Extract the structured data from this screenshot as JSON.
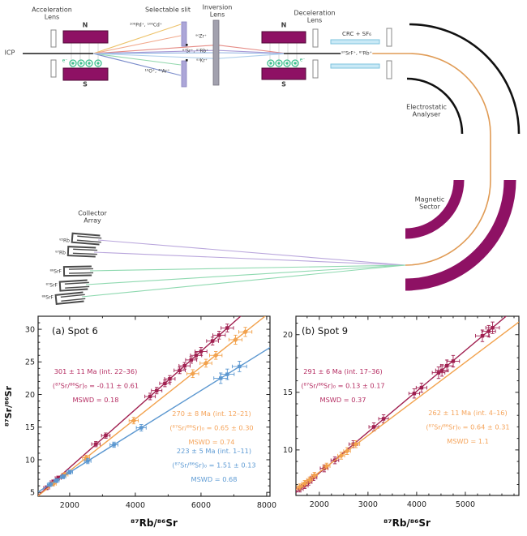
{
  "figure": {
    "background": "#ffffff"
  },
  "diagram": {
    "labels": {
      "icp": "ICP",
      "acceleration_lens": "Acceleration\nLens",
      "selectable_slit": "Selectable slit",
      "inversion_lens": "Inversion\nLens",
      "deceleration_lens": "Deceleration\nLens",
      "crc": "CRC + SF₆",
      "electrostatic_analyser": "Electrostatic\nAnalyser",
      "magnetic_sector": "Magnetic\nSector",
      "collector_array": "Collector\nArray",
      "magnet1_n": "N",
      "magnet1_s": "S",
      "magnet2_n": "N",
      "magnet2_s": "S",
      "electron1": "e⁻",
      "electron2": "e⁻"
    },
    "beam_labels": {
      "pd_cd": "¹⁰⁶Pd⁺, ¹⁰⁶Cd⁺",
      "o_ar": "¹⁶O⁺, ⁴⁰Ar⁺",
      "zr": "⁹⁰Zr⁺",
      "sr_rb": "⁸⁷Sr⁺, ⁸⁷Rb⁺",
      "kr": "⁸³Kr⁺",
      "srf_rb": "⁸⁷SrF⁺, ⁸⁷Rb⁺"
    },
    "collector_labels": [
      "⁸⁵Rb",
      "⁸⁷Rb",
      "⁸⁶SrF",
      "⁸⁷SrF",
      "⁸⁸SrF"
    ],
    "colors": {
      "magnet": "#8E1164",
      "magnet_border": "#4F0936",
      "beam_orange": "#E09B55",
      "beam_green": "#8FD9B0",
      "beam_purple": "#B9A6DC",
      "crc_cell": "#C9E9F6",
      "slit": "#ACA6D8",
      "lens_gray": "#A2A1AE",
      "electron_green": "#2FB67F"
    }
  },
  "chart_data": [
    {
      "type": "scatter",
      "title": "(a) Spot 6",
      "xlabel": "⁸⁷Rb/⁸⁶Sr",
      "ylabel": "⁸⁷Sr/⁸⁶Sr",
      "xlim": [
        1040,
        8100
      ],
      "ylim": [
        4.4,
        32.0
      ],
      "xticks": [
        2000,
        4000,
        6000,
        8000
      ],
      "xminor": 1000,
      "yticks": [
        5,
        10,
        15,
        20,
        25,
        30
      ],
      "yminor": 1,
      "grid": false,
      "series": [
        {
          "name": "int. 22-36",
          "color": "#A02050",
          "text_color": "#B52D62",
          "marker": "square",
          "fit_line": [
            [
              1040,
              4.51
            ],
            [
              7250,
              32.2
            ]
          ],
          "points": [
            [
              1300,
              5.7,
              90,
              0.3
            ],
            [
              1500,
              6.6,
              90,
              0.3
            ],
            [
              1650,
              7.2,
              90,
              0.3
            ],
            [
              2800,
              12.4,
              130,
              0.4
            ],
            [
              3100,
              13.7,
              130,
              0.4
            ],
            [
              4450,
              19.7,
              160,
              0.5
            ],
            [
              4650,
              20.6,
              160,
              0.5
            ],
            [
              4900,
              21.7,
              160,
              0.5
            ],
            [
              5050,
              22.4,
              160,
              0.5
            ],
            [
              5350,
              23.7,
              170,
              0.5
            ],
            [
              5500,
              24.4,
              170,
              0.5
            ],
            [
              5700,
              25.3,
              170,
              0.5
            ],
            [
              5850,
              26.0,
              170,
              0.5
            ],
            [
              6000,
              26.6,
              180,
              0.6
            ],
            [
              6350,
              28.2,
              180,
              0.6
            ],
            [
              6550,
              29.1,
              190,
              0.6
            ],
            [
              6800,
              30.2,
              190,
              0.6
            ]
          ],
          "annotation": [
            "301 ± 11 Ma (int. 22–36)",
            "(⁸⁷Sr/⁸⁶Sr)₀ = -0.11 ± 0.61",
            "MSWD = 0.18"
          ]
        },
        {
          "name": "int. 12-21",
          "color": "#F2A24D",
          "text_color": "#F5A45B",
          "marker": "diamond",
          "fit_line": [
            [
              1040,
              4.46
            ],
            [
              8100,
              32.6
            ]
          ],
          "points": [
            [
              1500,
              6.3,
              90,
              0.3
            ],
            [
              1850,
              7.7,
              100,
              0.3
            ],
            [
              2500,
              10.3,
              110,
              0.4
            ],
            [
              3950,
              16.0,
              140,
              0.5
            ],
            [
              5750,
              23.2,
              180,
              0.6
            ],
            [
              6150,
              24.8,
              180,
              0.6
            ],
            [
              6450,
              26.0,
              190,
              0.6
            ],
            [
              7050,
              28.4,
              200,
              0.7
            ],
            [
              7350,
              29.6,
              200,
              0.7
            ]
          ],
          "annotation": [
            "270 ± 8 Ma (int. 12–21)",
            "(⁸⁷Sr/⁸⁶Sr)₀ = 0.65 ± 0.30",
            "MSWD = 0.74"
          ]
        },
        {
          "name": "int. 1-11",
          "color": "#5B97D0",
          "text_color": "#5E9BD4",
          "marker": "square",
          "fit_line": [
            [
              1040,
              5.06
            ],
            [
              8100,
              27.2
            ]
          ],
          "points": [
            [
              1400,
              6.2,
              80,
              0.3
            ],
            [
              1600,
              6.8,
              80,
              0.3
            ],
            [
              1800,
              7.4,
              80,
              0.3
            ],
            [
              2000,
              8.1,
              90,
              0.3
            ],
            [
              2550,
              9.8,
              100,
              0.4
            ],
            [
              3350,
              12.3,
              120,
              0.4
            ],
            [
              4180,
              14.9,
              150,
              0.5
            ],
            [
              6600,
              22.5,
              210,
              0.8
            ],
            [
              6800,
              23.1,
              210,
              0.8
            ],
            [
              7170,
              24.3,
              220,
              0.8
            ]
          ],
          "annotation": [
            "223 ± 5 Ma (int. 1–11)",
            "(⁸⁷Sr/⁸⁶Sr)₀ = 1.51 ± 0.13",
            "MSWD = 0.68"
          ]
        }
      ]
    },
    {
      "type": "scatter",
      "title": "(b) Spot 9",
      "xlabel": "⁸⁷Rb/⁸⁶Sr",
      "ylabel": "",
      "xlim": [
        1520,
        6100
      ],
      "ylim": [
        6.05,
        21.6
      ],
      "xticks": [
        2000,
        3000,
        4000,
        5000
      ],
      "xminor": 250,
      "yticks": [
        10,
        15,
        20
      ],
      "yminor": 1,
      "grid": false,
      "series": [
        {
          "name": "int. 17-36",
          "color": "#A02050",
          "text_color": "#B52D62",
          "marker": "square",
          "fit_line": [
            [
              1520,
              6.3
            ],
            [
              5950,
              22.0
            ]
          ],
          "points": [
            [
              1600,
              6.6,
              70,
              0.25
            ],
            [
              1700,
              6.9,
              70,
              0.25
            ],
            [
              1780,
              7.2,
              70,
              0.25
            ],
            [
              1880,
              7.6,
              70,
              0.25
            ],
            [
              2100,
              8.4,
              80,
              0.3
            ],
            [
              2320,
              9.1,
              80,
              0.3
            ],
            [
              2700,
              10.5,
              90,
              0.3
            ],
            [
              3120,
              12.0,
              100,
              0.35
            ],
            [
              3320,
              12.7,
              100,
              0.35
            ],
            [
              3950,
              14.9,
              110,
              0.4
            ],
            [
              4100,
              15.4,
              110,
              0.4
            ],
            [
              4450,
              16.7,
              130,
              0.5
            ],
            [
              4520,
              16.9,
              130,
              0.5
            ],
            [
              4620,
              17.3,
              130,
              0.5
            ],
            [
              4750,
              17.7,
              130,
              0.5
            ],
            [
              5350,
              19.9,
              140,
              0.5
            ],
            [
              5480,
              20.3,
              140,
              0.5
            ],
            [
              5560,
              20.6,
              140,
              0.5
            ]
          ],
          "annotation": [
            "291 ± 6 Ma (int. 17–36)",
            "(⁸⁷Sr/⁸⁶Sr)₀ = 0.13 ± 0.17",
            "MSWD = 0.37"
          ]
        },
        {
          "name": "int. 4-16",
          "color": "#F2A24D",
          "text_color": "#F5A45B",
          "marker": "diamond",
          "fit_line": [
            [
              1520,
              6.55
            ],
            [
              6100,
              21.1
            ]
          ],
          "points": [
            [
              1600,
              6.8,
              60,
              0.25
            ],
            [
              1700,
              7.1,
              60,
              0.25
            ],
            [
              1800,
              7.4,
              60,
              0.25
            ],
            [
              1900,
              7.8,
              60,
              0.25
            ],
            [
              2150,
              8.6,
              70,
              0.25
            ],
            [
              2450,
              9.5,
              70,
              0.3
            ],
            [
              2570,
              9.9,
              70,
              0.3
            ],
            [
              2750,
              10.5,
              80,
              0.3
            ]
          ],
          "annotation": [
            "262 ± 11 Ma (int. 4–16)",
            "(⁸⁷Sr/⁸⁶Sr)₀ = 0.64 ± 0.31",
            "MSWD = 1.1"
          ]
        }
      ]
    }
  ]
}
